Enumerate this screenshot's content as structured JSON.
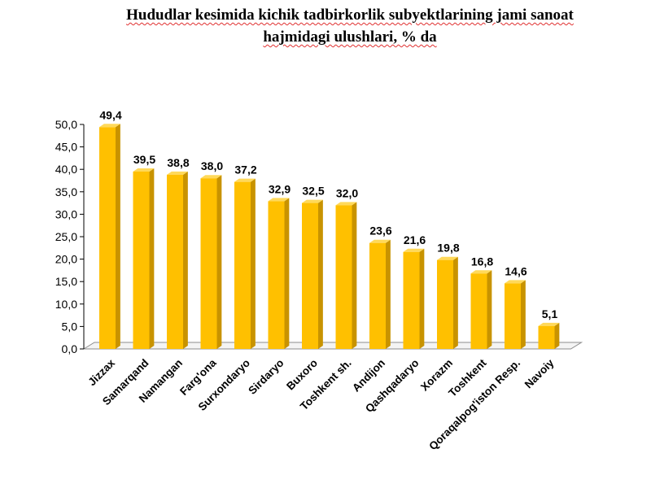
{
  "title": {
    "line1": "Hududlar kesimida kichik tadbirkorlik subyektlarining jami sanoat",
    "line2": "hajmidagi ulushlari, % da"
  },
  "colors": {
    "bar_front": "#ffc000",
    "bar_side": "#c89300",
    "bar_top": "#ffd95a",
    "axis": "#000000",
    "floor": "#8c8c8c"
  },
  "chart_data": {
    "type": "bar",
    "categories": [
      "Jizzax",
      "Samarqand",
      "Namangan",
      "Farg'ona",
      "Surxondaryo",
      "Sirdaryo",
      "Buxoro",
      "Toshkent sh.",
      "Andijon",
      "Qashqadaryo",
      "Xorazm",
      "Toshkent",
      "Qoraqalpog'iston Resp.",
      "Navoiy"
    ],
    "values": [
      49.4,
      39.5,
      38.8,
      38.0,
      37.2,
      32.9,
      32.5,
      32.0,
      23.6,
      21.6,
      19.8,
      16.8,
      14.6,
      5.1
    ],
    "value_labels": [
      "49,4",
      "39,5",
      "38,8",
      "38,0",
      "37,2",
      "32,9",
      "32,5",
      "32,0",
      "23,6",
      "21,6",
      "19,8",
      "16,8",
      "14,6",
      "5,1"
    ],
    "y_ticks": [
      "0,0",
      "5,0",
      "10,0",
      "15,0",
      "20,0",
      "25,0",
      "30,0",
      "35,0",
      "40,0",
      "45,0",
      "50,0"
    ],
    "ylim": [
      0,
      50
    ],
    "xlabel": "",
    "ylabel": "",
    "grid": false,
    "legend": "none",
    "style": "3d-column"
  }
}
